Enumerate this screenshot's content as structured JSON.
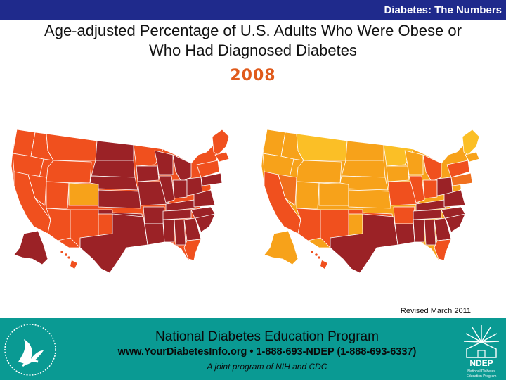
{
  "header": {
    "title": "Diabetes: The Numbers",
    "bar_color": "#1f2a8c"
  },
  "slide": {
    "title_line1": "Age-adjusted Percentage of U.S. Adults Who Were Obese or",
    "title_line2": "Who Had Diagnosed Diabetes",
    "year": "2008",
    "revised": "Revised March 2011"
  },
  "maps": [
    {
      "topic": "obesity",
      "base_color": "#f0501e",
      "color_scale": [
        "#f7a21a",
        "#f0501e",
        "#9b2226"
      ]
    },
    {
      "topic": "diagnosed-diabetes",
      "base_color": "#f7a21a",
      "color_scale": [
        "#fbbf26",
        "#f7a21a",
        "#f0701e",
        "#f0501e",
        "#9b2226"
      ]
    }
  ],
  "footer": {
    "program_name": "National Diabetes Education Program",
    "contact": "www.YourDiabetesInfo.org • 1-888-693-NDEP (1-888-693-6337)",
    "joint": "A joint program of NIH and CDC",
    "background": "#0a9a93",
    "seal_text": "DEPARTMENT OF HEALTH & HUMAN SERVICES USA",
    "logo_text": "NDEP",
    "logo_sub1": "National Diabetes",
    "logo_sub2": "Education Program"
  }
}
